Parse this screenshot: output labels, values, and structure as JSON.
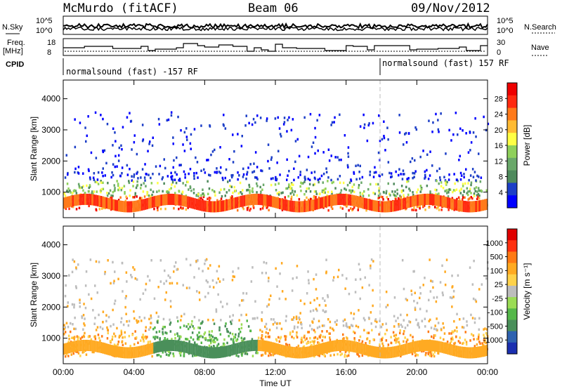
{
  "header": {
    "station": "McMurdo (fitACF)",
    "beam": "Beam 06",
    "date": "09/Nov/2012"
  },
  "top_panels": {
    "nsky_label": "N.Sky",
    "nsearch_label": "N.Search",
    "freq_label_1": "Freq.",
    "freq_label_2": "[MHz]",
    "nave_label": "Nave",
    "cpid_label": "CPID",
    "noise_ticks_left": [
      "10^5",
      "10^0"
    ],
    "noise_ticks_right": [
      "10^5",
      "10^0"
    ],
    "freq_ticks": [
      "18",
      "8"
    ],
    "nave_ticks": [
      "30",
      "0"
    ],
    "cpid_segments": [
      {
        "text": "normalsound (fast) -157 RF",
        "start_hour": 0
      },
      {
        "text": "normalsound (fast) 157 RF",
        "start_hour": 18
      }
    ]
  },
  "chart_data": [
    {
      "type": "heatmap",
      "title": "",
      "xlabel": "",
      "ylabel": "Slant Range [km]",
      "x_ticks": [
        "00:00",
        "04:00",
        "08:00",
        "12:00",
        "16:00",
        "20:00",
        "00:00"
      ],
      "xlim_hours": [
        0,
        24
      ],
      "y_ticks": [
        1000,
        2000,
        3000,
        4000
      ],
      "ylim": [
        180,
        4600
      ],
      "colorbar": {
        "label": "Power [dB]",
        "ticks": [
          "4",
          "8",
          "12",
          "16",
          "20",
          "24",
          "28"
        ],
        "colors": [
          "#0000ff",
          "#1d3fc7",
          "#4f8a5c",
          "#6aa86a",
          "#8fd05a",
          "#ffff44",
          "#ffbb33",
          "#ff7a1a",
          "#ff2a10",
          "#ee0000"
        ]
      }
    },
    {
      "type": "heatmap",
      "title": "",
      "xlabel": "Time UT",
      "ylabel": "Slant Range [km]",
      "x_ticks": [
        "00:00",
        "04:00",
        "08:00",
        "12:00",
        "16:00",
        "20:00",
        "00:00"
      ],
      "xlim_hours": [
        0,
        24
      ],
      "y_ticks": [
        1000,
        2000,
        3000,
        4000
      ],
      "ylim": [
        180,
        4600
      ],
      "colorbar": {
        "label": "Velocity [m s⁻¹]",
        "ticks": [
          "1000",
          "500",
          "100",
          "25",
          "-25",
          "-100",
          "-500",
          "-1000"
        ],
        "colors": [
          "#1b2fb0",
          "#2e62b0",
          "#4a8f5a",
          "#55b84a",
          "#9bdc55",
          "#bdbdbd",
          "#ffd24a",
          "#ffaa22",
          "#ff7a14",
          "#ff3010",
          "#e00000"
        ]
      }
    }
  ],
  "colors": {
    "ground_scatter": "#9a9a9a",
    "dashed_marker": "#bbbbbb"
  }
}
